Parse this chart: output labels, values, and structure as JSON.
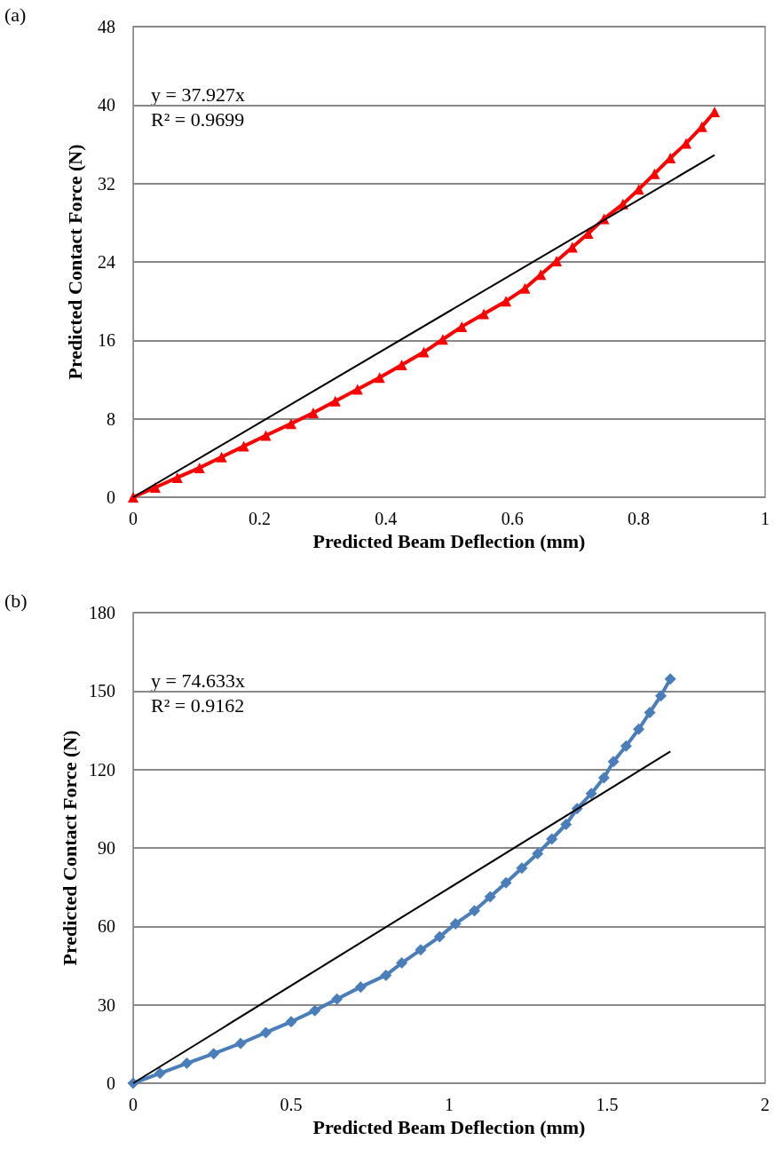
{
  "chart_data": [
    {
      "type": "line",
      "title": "(a)",
      "xlabel": "Predicted Beam Deflection (mm)",
      "ylabel": "Predicted Contact Force (N)",
      "annotations": [
        "y = 37.927x",
        "R² = 0.9699"
      ],
      "xlim": [
        0,
        1
      ],
      "xticks": [
        0,
        0.2,
        0.4,
        0.6,
        0.8,
        1
      ],
      "ylim": [
        0,
        48
      ],
      "yticks": [
        0,
        8,
        16,
        24,
        32,
        40,
        48
      ],
      "grid": "y",
      "series": [
        {
          "color": "#ff0000",
          "marker": "triangle",
          "x": [
            0,
            0.035,
            0.07,
            0.105,
            0.14,
            0.175,
            0.21,
            0.25,
            0.285,
            0.32,
            0.355,
            0.39,
            0.425,
            0.46,
            0.49,
            0.52,
            0.555,
            0.59,
            0.62,
            0.645,
            0.67,
            0.695,
            0.72,
            0.745,
            0.775,
            0.8,
            0.825,
            0.85,
            0.875,
            0.9,
            0.92
          ],
          "values": [
            0,
            1.0,
            2.0,
            3.0,
            4.1,
            5.2,
            6.3,
            7.5,
            8.6,
            9.8,
            11.0,
            12.2,
            13.5,
            14.8,
            16.1,
            17.4,
            18.7,
            20.0,
            21.3,
            22.7,
            24.1,
            25.5,
            26.9,
            28.4,
            29.9,
            31.4,
            33.0,
            34.6,
            36.1,
            37.8,
            39.3
          ]
        },
        {
          "color": "#000000",
          "marker": "none",
          "x": [
            0,
            0.92
          ],
          "values": [
            0,
            34.9
          ]
        }
      ]
    },
    {
      "type": "line",
      "title": "(b)",
      "xlabel": "Predicted Beam Deflection (mm)",
      "ylabel": "Predicted Contact Force (N)",
      "annotations": [
        "y = 74.633x",
        "R² = 0.9162"
      ],
      "xlim": [
        0,
        2
      ],
      "xticks": [
        0,
        0.5,
        1,
        1.5,
        2
      ],
      "ylim": [
        0,
        180
      ],
      "yticks": [
        0,
        30,
        60,
        90,
        120,
        150,
        180
      ],
      "grid": "y",
      "series": [
        {
          "color": "#4a7ebb",
          "marker": "diamond",
          "x": [
            0,
            0.085,
            0.17,
            0.255,
            0.34,
            0.42,
            0.5,
            0.575,
            0.645,
            0.72,
            0.8,
            0.85,
            0.91,
            0.97,
            1.02,
            1.08,
            1.13,
            1.18,
            1.23,
            1.28,
            1.325,
            1.37,
            1.405,
            1.45,
            1.49,
            1.52,
            1.56,
            1.6,
            1.635,
            1.67,
            1.7
          ],
          "values": [
            0,
            3.8,
            7.6,
            11.3,
            15.2,
            19.4,
            23.5,
            27.8,
            32.2,
            36.8,
            41.3,
            46,
            51,
            56,
            61,
            66,
            71.3,
            76.7,
            82.3,
            87.8,
            93.4,
            99,
            105,
            110.8,
            116.8,
            123,
            129,
            135.4,
            141.8,
            148.2,
            154.6
          ]
        },
        {
          "color": "#000000",
          "marker": "none",
          "x": [
            0,
            1.7
          ],
          "values": [
            0,
            126.9
          ]
        }
      ]
    }
  ]
}
